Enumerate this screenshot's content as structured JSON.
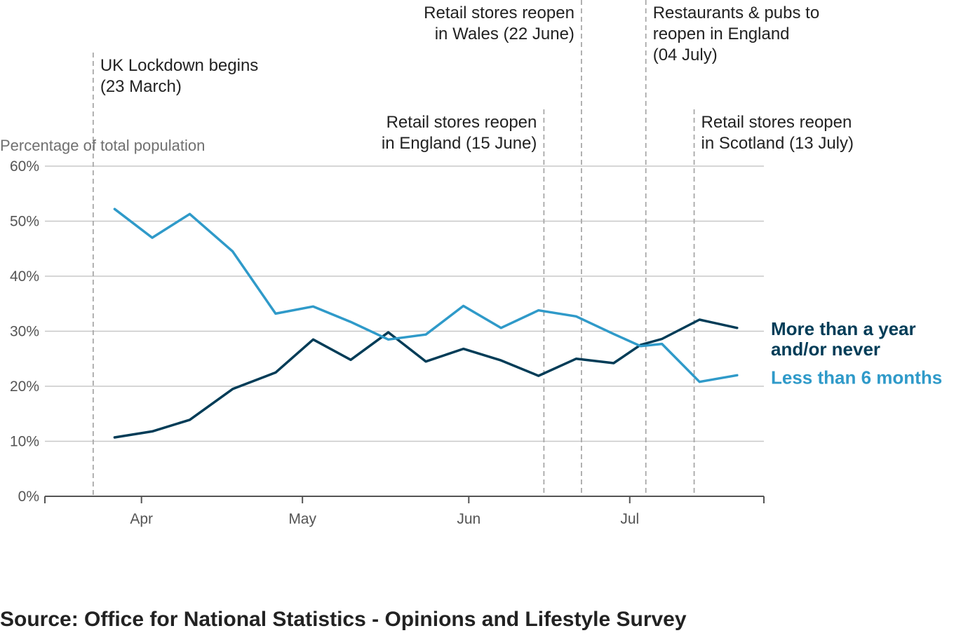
{
  "chart_data": {
    "type": "line",
    "ylabel": "Percentage of total population",
    "y_ticks": [
      "0%",
      "10%",
      "20%",
      "30%",
      "40%",
      "50%",
      "60%"
    ],
    "ylim": [
      0,
      60
    ],
    "xlim": [
      "2020-03-14",
      "2020-07-26"
    ],
    "x_ticks": [
      {
        "label": "Apr",
        "date": "2020-04-01"
      },
      {
        "label": "May",
        "date": "2020-05-01"
      },
      {
        "label": "Jun",
        "date": "2020-06-01"
      },
      {
        "label": "Jul",
        "date": "2020-07-01"
      }
    ],
    "grid": true,
    "x": [
      "2020-03-27",
      "2020-04-03",
      "2020-04-10",
      "2020-04-18",
      "2020-04-26",
      "2020-05-03",
      "2020-05-10",
      "2020-05-17",
      "2020-05-24",
      "2020-05-31",
      "2020-06-07",
      "2020-06-14",
      "2020-06-21",
      "2020-06-28",
      "2020-07-03",
      "2020-07-07",
      "2020-07-14",
      "2020-07-21"
    ],
    "series": [
      {
        "name": "More than a year and/or never",
        "name_lines": [
          "More than a year",
          "and/or never"
        ],
        "color": "#003c57",
        "values": [
          10.7,
          11.8,
          13.9,
          19.5,
          22.5,
          28.5,
          24.8,
          29.8,
          24.5,
          26.8,
          24.7,
          21.9,
          25.0,
          24.2,
          27.5,
          28.6,
          32.1,
          30.6
        ]
      },
      {
        "name": "Less than 6 months",
        "name_lines": [
          "Less than 6 months"
        ],
        "color": "#2f9ac9",
        "values": [
          52.2,
          47.0,
          51.3,
          44.5,
          33.2,
          34.5,
          31.7,
          28.5,
          29.4,
          34.6,
          30.6,
          33.8,
          32.7,
          29.5,
          27.3,
          27.7,
          20.8,
          22.0
        ]
      }
    ],
    "annotations": [
      {
        "date": "2020-03-23",
        "lines": [
          "UK Lockdown begins",
          "(23 March)"
        ],
        "align": "left"
      },
      {
        "date": "2020-06-15",
        "lines": [
          "Retail stores reopen",
          "in England (15 June)"
        ],
        "align": "right"
      },
      {
        "date": "2020-06-22",
        "lines": [
          "Retail stores reopen",
          "in Wales (22 June)"
        ],
        "align": "right"
      },
      {
        "date": "2020-07-04",
        "lines": [
          "Restaurants & pubs to",
          "reopen in England",
          "(04 July)"
        ],
        "align": "left"
      },
      {
        "date": "2020-07-13",
        "lines": [
          "Retail stores reopen",
          "in Scotland (13 July)"
        ],
        "align": "left"
      }
    ]
  },
  "source": "Source: Office for National Statistics - Opinions and Lifestyle Survey"
}
